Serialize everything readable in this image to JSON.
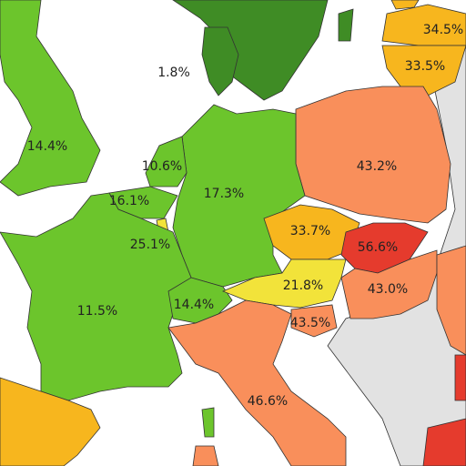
{
  "labels": [
    "1.8%",
    "34.5%",
    "33.5%",
    "14.4%",
    "43.2%",
    "10.6%",
    "17.3%",
    "16.1%",
    "33.7%",
    "56.6%",
    "25.1%",
    "21.8%",
    "43.0%",
    "11.5%",
    "14.4%",
    "43.5%",
    "46.6%"
  ]
}
